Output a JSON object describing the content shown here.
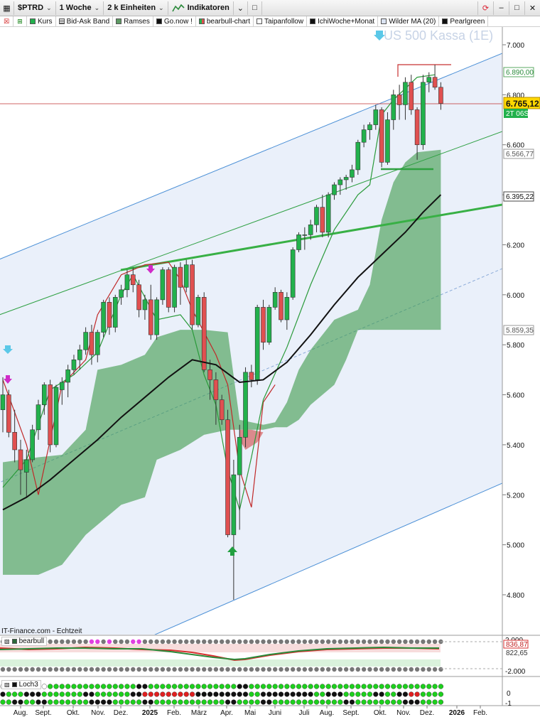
{
  "toolbar": {
    "symbol": "$PTRD",
    "period": "1 Woche",
    "units": "2 k Einheiten",
    "indicators": "Indikatoren"
  },
  "legend": {
    "items": [
      "Kurs",
      "Bid-Ask Band",
      "Ramses",
      "Go.now !",
      "bearbull-chart",
      "Taipanfollow",
      "IchiWoche+Monat",
      "Wilder MA (20)",
      "Pearlgreen"
    ]
  },
  "watermark": "US 500 Kassa (1E)",
  "source": "IT-Finance.com - Echtzeit",
  "price_labels": {
    "top_level": "6.890,00",
    "current": "6.765,12",
    "countdown": "2T 06S",
    "level_2": "6.566,77",
    "level_3": "6.395,22",
    "level_4": "5.859,35"
  },
  "colors": {
    "up": "#22b14c",
    "down": "#e05050",
    "cloud": "#4f9f57",
    "channel": "#dce6f7",
    "current_label": "#ffd700"
  },
  "panels": {
    "bearbull": {
      "label": "bearbull",
      "ticks": [
        "2.000",
        "-2.000"
      ],
      "values": [
        "836,87",
        "822,65"
      ]
    },
    "loch3": {
      "label": "Loch3",
      "ticks": [
        "0",
        "-1"
      ]
    }
  },
  "chart_data": {
    "type": "line",
    "title": "US 500 Kassa (1E)",
    "xlabel": "",
    "ylabel": "",
    "ylim": [
      4700,
      7150
    ],
    "x_ticks": [
      "Aug.",
      "Sept.",
      "Okt.",
      "Nov.",
      "Dez.",
      "2025",
      "Feb.",
      "März",
      "Apr.",
      "Mai",
      "Juni",
      "Juli",
      "Aug.",
      "Sept.",
      "Okt.",
      "Nov.",
      "Dez.",
      "2026",
      "Feb."
    ],
    "y_ticks": [
      "7.000",
      "6.800",
      "6.600",
      "6.400",
      "6.200",
      "6.000",
      "5.800",
      "5.600",
      "5.400",
      "5.200",
      "5.000",
      "4.800"
    ],
    "series": [
      {
        "name": "Kurs",
        "candles": [
          [
            5540,
            5670,
            5450,
            5600
          ],
          [
            5600,
            5620,
            5430,
            5450
          ],
          [
            5450,
            5540,
            5330,
            5380
          ],
          [
            5380,
            5420,
            5200,
            5300
          ],
          [
            5290,
            5380,
            5190,
            5340
          ],
          [
            5340,
            5480,
            5330,
            5460
          ],
          [
            5460,
            5580,
            5420,
            5560
          ],
          [
            5560,
            5650,
            5520,
            5640
          ],
          [
            5640,
            5660,
            5370,
            5400
          ],
          [
            5400,
            5640,
            5390,
            5630
          ],
          [
            5620,
            5670,
            5560,
            5650
          ],
          [
            5650,
            5720,
            5590,
            5700
          ],
          [
            5700,
            5760,
            5680,
            5740
          ],
          [
            5740,
            5800,
            5700,
            5780
          ],
          [
            5780,
            5870,
            5760,
            5850
          ],
          [
            5850,
            5880,
            5720,
            5760
          ],
          [
            5760,
            5860,
            5730,
            5850
          ],
          [
            5850,
            5980,
            5830,
            5970
          ],
          [
            5970,
            5990,
            5840,
            5870
          ],
          [
            5870,
            6000,
            5850,
            5990
          ],
          [
            5990,
            6040,
            5960,
            6020
          ],
          [
            6020,
            6100,
            5990,
            6080
          ],
          [
            6080,
            6110,
            6010,
            6040
          ],
          [
            6040,
            6060,
            5910,
            5940
          ],
          [
            5940,
            6000,
            5900,
            5980
          ],
          [
            5980,
            6040,
            5820,
            5840
          ],
          [
            5840,
            5990,
            5820,
            5980
          ],
          [
            5980,
            6110,
            5960,
            6100
          ],
          [
            6100,
            6110,
            5930,
            5950
          ],
          [
            5950,
            6120,
            5930,
            6110
          ],
          [
            6110,
            6130,
            5960,
            6030
          ],
          [
            6030,
            6140,
            6010,
            6120
          ],
          [
            6120,
            6140,
            5860,
            5880
          ],
          [
            5880,
            6000,
            5870,
            5990
          ],
          [
            5990,
            6010,
            5690,
            5700
          ],
          [
            5700,
            5740,
            5580,
            5660
          ],
          [
            5660,
            5690,
            5480,
            5580
          ],
          [
            5580,
            5600,
            5480,
            5500
          ],
          [
            5500,
            5540,
            5030,
            5040
          ],
          [
            5040,
            5340,
            4780,
            5280
          ],
          [
            5280,
            5480,
            5060,
            5430
          ],
          [
            5430,
            5710,
            5390,
            5690
          ],
          [
            5690,
            5720,
            5630,
            5660
          ],
          [
            5660,
            5960,
            5640,
            5950
          ],
          [
            5950,
            5980,
            5780,
            5810
          ],
          [
            5810,
            5960,
            5800,
            5950
          ],
          [
            5950,
            6030,
            5940,
            6010
          ],
          [
            6010,
            6020,
            5890,
            5900
          ],
          [
            5900,
            6010,
            5860,
            5990
          ],
          [
            5990,
            6190,
            5980,
            6180
          ],
          [
            6180,
            6250,
            6170,
            6240
          ],
          [
            6240,
            6270,
            6180,
            6240
          ],
          [
            6240,
            6300,
            6220,
            6280
          ],
          [
            6280,
            6360,
            6250,
            6350
          ],
          [
            6350,
            6400,
            6230,
            6250
          ],
          [
            6250,
            6410,
            6230,
            6400
          ],
          [
            6400,
            6450,
            6380,
            6440
          ],
          [
            6440,
            6470,
            6400,
            6460
          ],
          [
            6460,
            6480,
            6420,
            6470
          ],
          [
            6470,
            6520,
            6450,
            6500
          ],
          [
            6500,
            6620,
            6480,
            6610
          ],
          [
            6610,
            6680,
            6590,
            6660
          ],
          [
            6660,
            6690,
            6620,
            6680
          ],
          [
            6680,
            6760,
            6660,
            6740
          ],
          [
            6740,
            6750,
            6510,
            6530
          ],
          [
            6530,
            6730,
            6520,
            6700
          ],
          [
            6700,
            6820,
            6660,
            6800
          ],
          [
            6800,
            6840,
            6700,
            6760
          ],
          [
            6760,
            6870,
            6700,
            6850
          ],
          [
            6850,
            6880,
            6720,
            6740
          ],
          [
            6740,
            6750,
            6540,
            6600
          ],
          [
            6600,
            6880,
            6580,
            6850
          ],
          [
            6850,
            6890,
            6810,
            6870
          ],
          [
            6870,
            6920,
            6820,
            6830
          ],
          [
            6830,
            6850,
            6740,
            6765
          ]
        ]
      },
      {
        "name": "Wilder MA (20)",
        "points": [
          [
            0,
            5140
          ],
          [
            4,
            5190
          ],
          [
            8,
            5260
          ],
          [
            12,
            5340
          ],
          [
            16,
            5420
          ],
          [
            20,
            5510
          ],
          [
            24,
            5590
          ],
          [
            28,
            5670
          ],
          [
            32,
            5740
          ],
          [
            36,
            5720
          ],
          [
            40,
            5650
          ],
          [
            44,
            5660
          ],
          [
            48,
            5730
          ],
          [
            52,
            5840
          ],
          [
            56,
            5960
          ],
          [
            60,
            6070
          ],
          [
            64,
            6160
          ],
          [
            68,
            6250
          ],
          [
            71,
            6330
          ],
          [
            74,
            6400
          ]
        ]
      }
    ]
  }
}
